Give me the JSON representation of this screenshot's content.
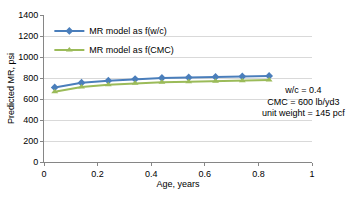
{
  "chart_data": {
    "type": "line",
    "x_label": "Age, years",
    "y_label": "Predicted MR, psi",
    "x": [
      0.04,
      0.14,
      0.24,
      0.34,
      0.44,
      0.54,
      0.64,
      0.74,
      0.84
    ],
    "series": [
      {
        "name": "MR model as f(w/c)",
        "color": "#4a7ebb",
        "marker": "diamond",
        "values": [
          710,
          755,
          775,
          790,
          800,
          805,
          810,
          815,
          820
        ]
      },
      {
        "name": "MR model as f(CMC)",
        "color": "#9bbb59",
        "marker": "triangle-up",
        "values": [
          670,
          715,
          735,
          750,
          760,
          765,
          770,
          775,
          780
        ]
      }
    ],
    "xlim": [
      0,
      1
    ],
    "xticks": [
      0,
      0.2,
      0.4,
      0.6,
      0.8,
      1
    ],
    "ylim": [
      0,
      1400
    ],
    "yticks": [
      0,
      200,
      400,
      600,
      800,
      1000,
      1200,
      1400
    ],
    "grid": true,
    "legend": "upper left",
    "annotations": [
      {
        "lines": [
          "w/c = 0.4",
          "CMC = 600 lb/yd3",
          "unit weight = 145 pcf"
        ],
        "x": 0.97,
        "y": 580
      }
    ]
  }
}
